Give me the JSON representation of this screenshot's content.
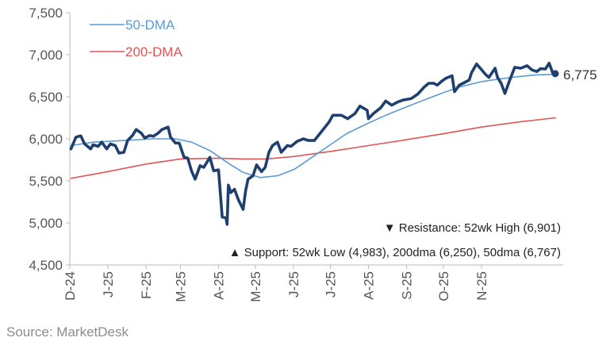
{
  "chart_data": {
    "type": "line",
    "title": "",
    "xlabel": "",
    "ylabel": "",
    "ylim": [
      4500,
      7500
    ],
    "yticks": [
      "4,500",
      "5,000",
      "5,500",
      "6,000",
      "6,500",
      "7,000",
      "7,500"
    ],
    "ytick_values": [
      4500,
      5000,
      5500,
      6000,
      6500,
      7000,
      7500
    ],
    "xticks": [
      "D-24",
      "J-25",
      "F-25",
      "M-25",
      "A-25",
      "M-25",
      "J-25",
      "J-25",
      "A-25",
      "S-25",
      "O-25",
      "N-25"
    ],
    "grid": false,
    "legend_position": "top-left",
    "colors": {
      "price": "#1f3f6e",
      "dma50": "#5b9bd5",
      "dma200": "#e05555",
      "axis": "#bbbbbb",
      "text": "#555555"
    },
    "series": [
      {
        "name": "",
        "key": "price",
        "points": [
          [
            "2024-12-02",
            5880
          ],
          [
            "2024-12-06",
            6020
          ],
          [
            "2024-12-10",
            6035
          ],
          [
            "2024-12-13",
            5940
          ],
          [
            "2024-12-18",
            5880
          ],
          [
            "2024-12-20",
            5930
          ],
          [
            "2024-12-24",
            5910
          ],
          [
            "2024-12-27",
            5960
          ],
          [
            "2024-12-31",
            5880
          ],
          [
            "2025-01-03",
            5940
          ],
          [
            "2025-01-07",
            5920
          ],
          [
            "2025-01-10",
            5830
          ],
          [
            "2025-01-14",
            5840
          ],
          [
            "2025-01-17",
            5980
          ],
          [
            "2025-01-21",
            6040
          ],
          [
            "2025-01-24",
            6110
          ],
          [
            "2025-01-28",
            6070
          ],
          [
            "2025-01-31",
            6010
          ],
          [
            "2025-02-04",
            6040
          ],
          [
            "2025-02-07",
            6030
          ],
          [
            "2025-02-11",
            6070
          ],
          [
            "2025-02-14",
            6110
          ],
          [
            "2025-02-19",
            6140
          ],
          [
            "2025-02-21",
            6020
          ],
          [
            "2025-02-25",
            5950
          ],
          [
            "2025-02-28",
            5950
          ],
          [
            "2025-03-04",
            5780
          ],
          [
            "2025-03-07",
            5770
          ],
          [
            "2025-03-10",
            5620
          ],
          [
            "2025-03-13",
            5520
          ],
          [
            "2025-03-17",
            5680
          ],
          [
            "2025-03-20",
            5660
          ],
          [
            "2025-03-25",
            5780
          ],
          [
            "2025-03-28",
            5620
          ],
          [
            "2025-04-01",
            5630
          ],
          [
            "2025-04-04",
            5070
          ],
          [
            "2025-04-07",
            5060
          ],
          [
            "2025-04-08",
            4983
          ],
          [
            "2025-04-09",
            5450
          ],
          [
            "2025-04-11",
            5360
          ],
          [
            "2025-04-14",
            5400
          ],
          [
            "2025-04-17",
            5280
          ],
          [
            "2025-04-21",
            5160
          ],
          [
            "2025-04-23",
            5380
          ],
          [
            "2025-04-25",
            5520
          ],
          [
            "2025-04-29",
            5560
          ],
          [
            "2025-05-02",
            5690
          ],
          [
            "2025-05-06",
            5610
          ],
          [
            "2025-05-09",
            5660
          ],
          [
            "2025-05-12",
            5840
          ],
          [
            "2025-05-15",
            5920
          ],
          [
            "2025-05-19",
            5960
          ],
          [
            "2025-05-22",
            5840
          ],
          [
            "2025-05-27",
            5920
          ],
          [
            "2025-05-30",
            5910
          ],
          [
            "2025-06-04",
            5970
          ],
          [
            "2025-06-09",
            6000
          ],
          [
            "2025-06-13",
            5980
          ],
          [
            "2025-06-18",
            5980
          ],
          [
            "2025-06-24",
            6090
          ],
          [
            "2025-06-30",
            6200
          ],
          [
            "2025-07-03",
            6280
          ],
          [
            "2025-07-10",
            6280
          ],
          [
            "2025-07-15",
            6240
          ],
          [
            "2025-07-21",
            6300
          ],
          [
            "2025-07-25",
            6390
          ],
          [
            "2025-07-31",
            6340
          ],
          [
            "2025-08-01",
            6240
          ],
          [
            "2025-08-05",
            6300
          ],
          [
            "2025-08-11",
            6370
          ],
          [
            "2025-08-15",
            6450
          ],
          [
            "2025-08-20",
            6400
          ],
          [
            "2025-08-25",
            6440
          ],
          [
            "2025-08-29",
            6460
          ],
          [
            "2025-09-05",
            6480
          ],
          [
            "2025-09-10",
            6530
          ],
          [
            "2025-09-15",
            6610
          ],
          [
            "2025-09-19",
            6660
          ],
          [
            "2025-09-23",
            6660
          ],
          [
            "2025-09-26",
            6640
          ],
          [
            "2025-09-30",
            6690
          ],
          [
            "2025-10-03",
            6720
          ],
          [
            "2025-10-08",
            6750
          ],
          [
            "2025-10-10",
            6560
          ],
          [
            "2025-10-14",
            6640
          ],
          [
            "2025-10-17",
            6660
          ],
          [
            "2025-10-22",
            6700
          ],
          [
            "2025-10-24",
            6790
          ],
          [
            "2025-10-28",
            6890
          ],
          [
            "2025-10-31",
            6840
          ],
          [
            "2025-11-04",
            6770
          ],
          [
            "2025-11-07",
            6730
          ],
          [
            "2025-11-12",
            6840
          ],
          [
            "2025-11-14",
            6730
          ],
          [
            "2025-11-17",
            6660
          ],
          [
            "2025-11-20",
            6540
          ],
          [
            "2025-11-24",
            6700
          ],
          [
            "2025-11-28",
            6850
          ],
          [
            "2025-12-03",
            6840
          ],
          [
            "2025-12-08",
            6870
          ],
          [
            "2025-12-12",
            6820
          ],
          [
            "2025-12-16",
            6800
          ],
          [
            "2025-12-19",
            6834
          ],
          [
            "2025-12-23",
            6830
          ],
          [
            "2025-12-26",
            6900
          ],
          [
            "2025-12-29",
            6780
          ],
          [
            "2025-12-31",
            6775
          ]
        ]
      },
      {
        "name": "50-DMA",
        "key": "dma50",
        "points": [
          [
            "2024-12-02",
            5920
          ],
          [
            "2024-12-20",
            5960
          ],
          [
            "2025-01-15",
            5980
          ],
          [
            "2025-02-07",
            6000
          ],
          [
            "2025-02-25",
            6000
          ],
          [
            "2025-03-10",
            5960
          ],
          [
            "2025-03-25",
            5860
          ],
          [
            "2025-04-08",
            5720
          ],
          [
            "2025-04-21",
            5600
          ],
          [
            "2025-05-05",
            5540
          ],
          [
            "2025-05-19",
            5560
          ],
          [
            "2025-06-02",
            5640
          ],
          [
            "2025-06-16",
            5780
          ],
          [
            "2025-06-30",
            5920
          ],
          [
            "2025-07-14",
            6060
          ],
          [
            "2025-07-31",
            6180
          ],
          [
            "2025-08-15",
            6280
          ],
          [
            "2025-09-01",
            6380
          ],
          [
            "2025-09-15",
            6460
          ],
          [
            "2025-10-01",
            6550
          ],
          [
            "2025-10-15",
            6620
          ],
          [
            "2025-11-01",
            6680
          ],
          [
            "2025-11-15",
            6710
          ],
          [
            "2025-12-01",
            6740
          ],
          [
            "2025-12-15",
            6760
          ],
          [
            "2025-12-31",
            6767
          ]
        ]
      },
      {
        "name": "200-DMA",
        "key": "dma200",
        "points": [
          [
            "2024-12-02",
            5530
          ],
          [
            "2025-01-01",
            5610
          ],
          [
            "2025-02-01",
            5700
          ],
          [
            "2025-03-01",
            5760
          ],
          [
            "2025-04-01",
            5770
          ],
          [
            "2025-04-20",
            5760
          ],
          [
            "2025-05-10",
            5760
          ],
          [
            "2025-06-01",
            5790
          ],
          [
            "2025-07-01",
            5850
          ],
          [
            "2025-08-01",
            5920
          ],
          [
            "2025-09-01",
            5990
          ],
          [
            "2025-10-01",
            6060
          ],
          [
            "2025-11-01",
            6140
          ],
          [
            "2025-12-01",
            6200
          ],
          [
            "2025-12-31",
            6250
          ]
        ]
      }
    ],
    "last_value_label": "6,775",
    "annotations": {
      "resistance": "▼ Resistance:  52wk High (6,901)",
      "support": "▲ Support:  52wk Low (4,983), 200dma (6,250), 50dma (6,767)"
    }
  },
  "source": "Source: MarketDesk"
}
